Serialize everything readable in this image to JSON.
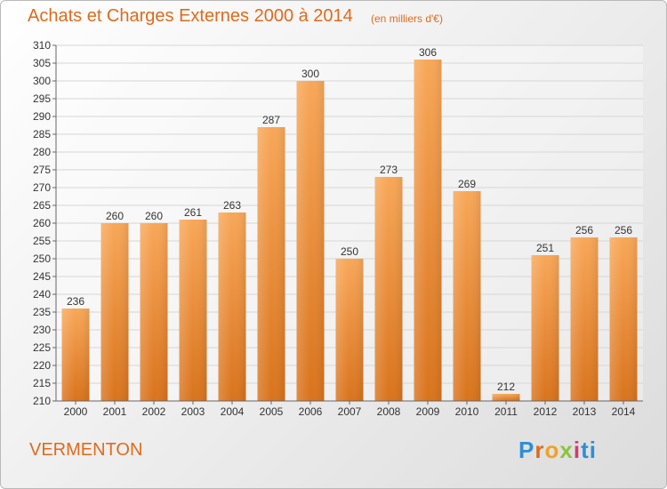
{
  "chart_data": {
    "type": "bar",
    "title": "Achats et Charges Externes 2000 à 2014",
    "subtitle": "(en milliers d'€)",
    "categories": [
      "2000",
      "2001",
      "2002",
      "2003",
      "2004",
      "2005",
      "2006",
      "2007",
      "2008",
      "2009",
      "2010",
      "2011",
      "2012",
      "2013",
      "2014"
    ],
    "values": [
      236,
      260,
      260,
      261,
      263,
      287,
      300,
      250,
      273,
      306,
      269,
      212,
      251,
      256,
      256
    ],
    "ylim": [
      210,
      310
    ],
    "ytick_step": 5,
    "grid": true,
    "bar_color": "#ef8f3a"
  },
  "place": "VERMENTON",
  "logo": "Proxiti"
}
